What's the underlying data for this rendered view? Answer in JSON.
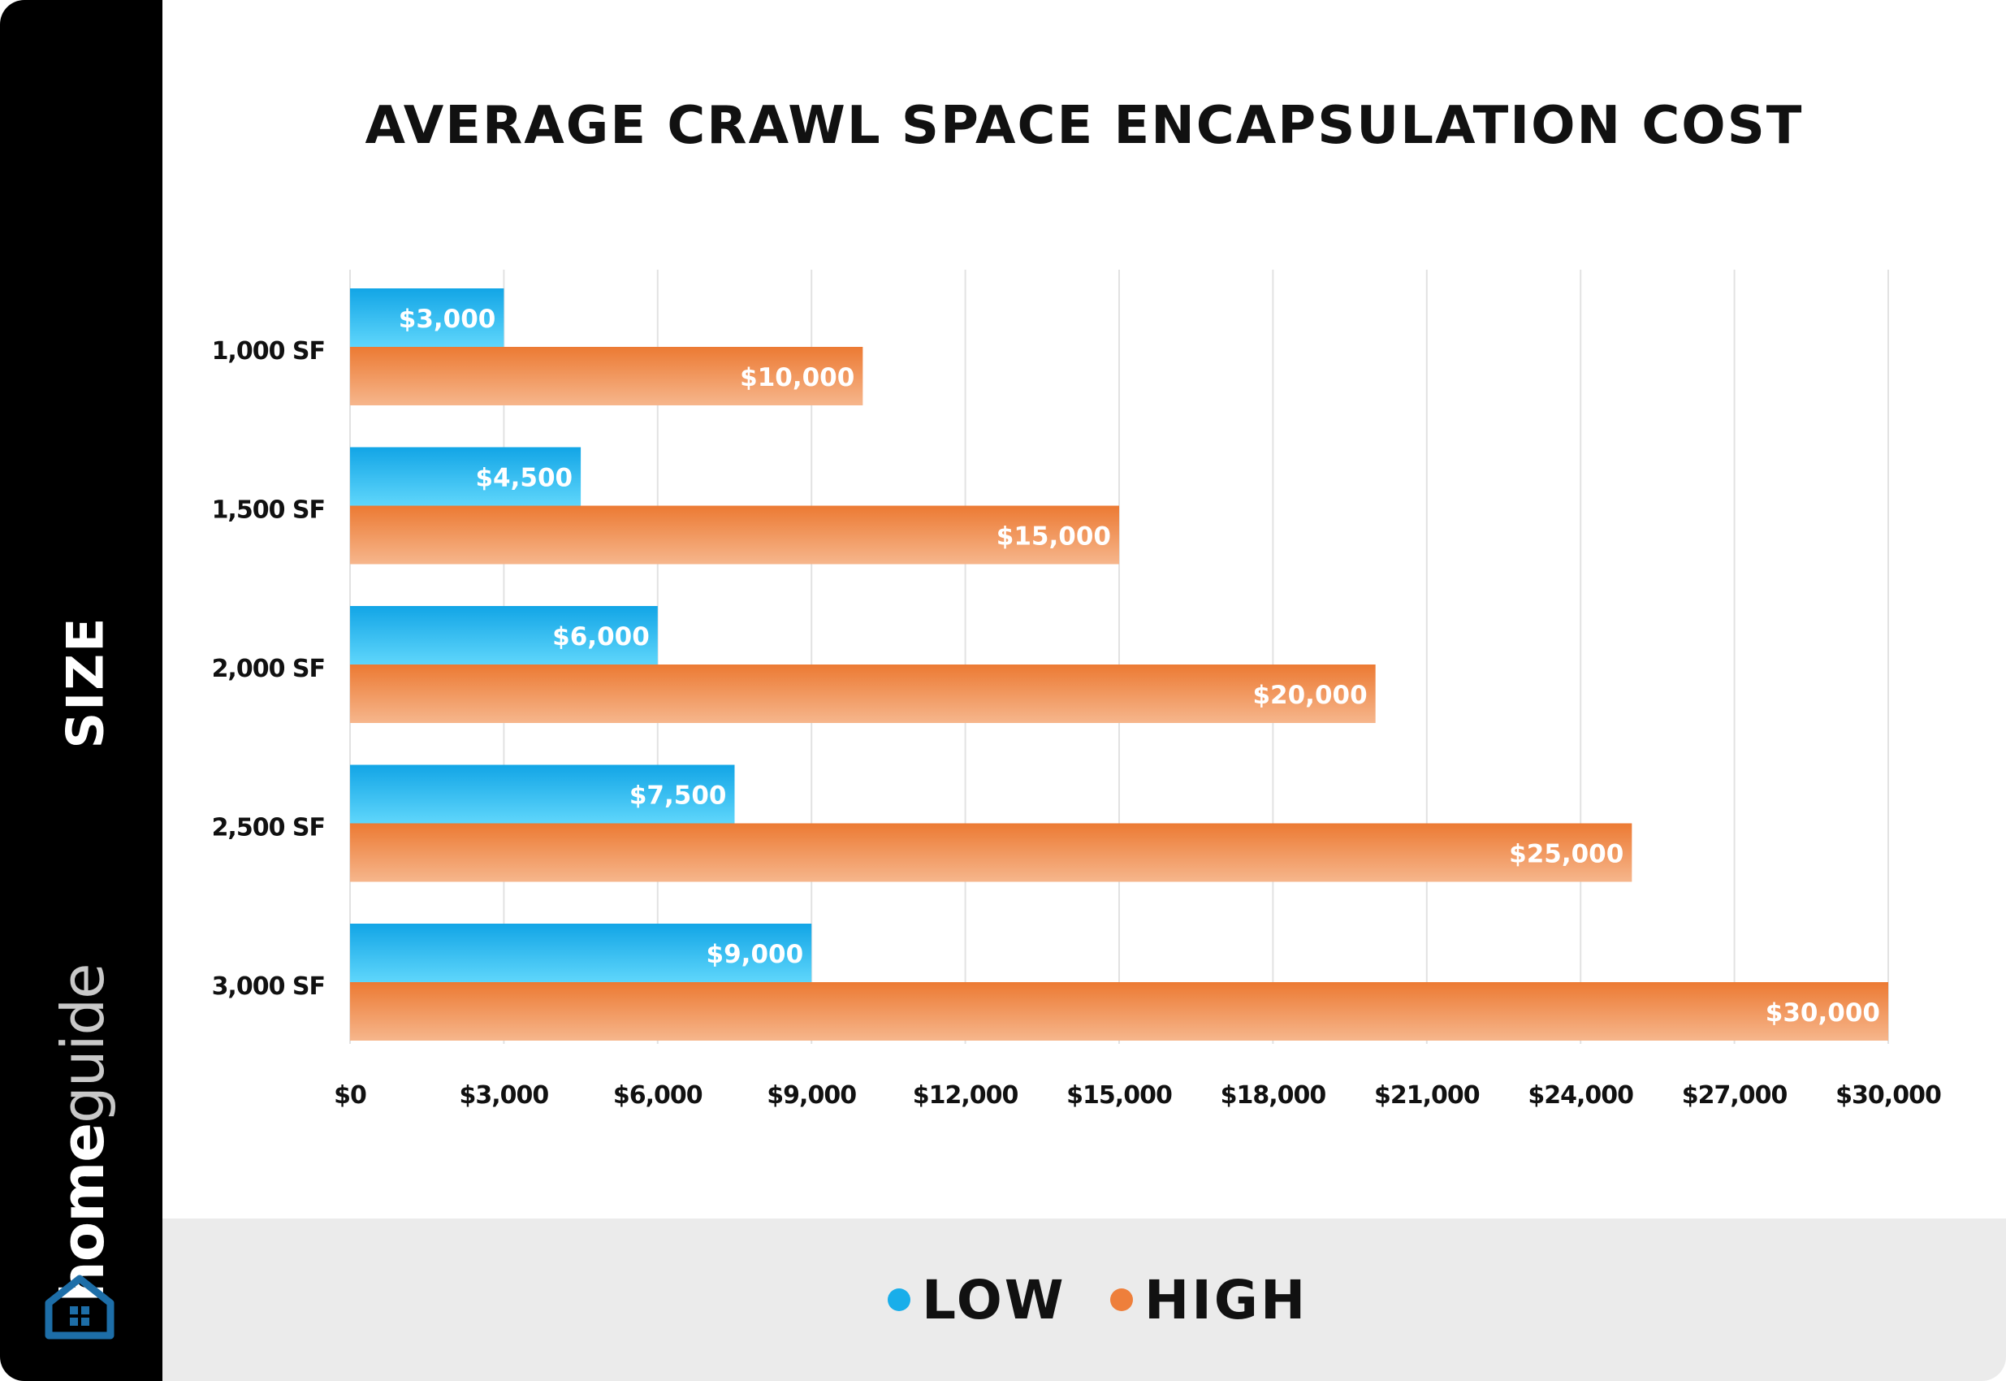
{
  "side_label": "SIZE",
  "brand": {
    "part1": "home",
    "part2": "guide"
  },
  "icons": {
    "logo": "house-icon"
  },
  "colors": {
    "low": "#19aeea",
    "high": "#ee7f3b",
    "sidebar": "#000000",
    "legend_background": "#ebebeb",
    "grid": "#e2e2e2"
  },
  "chart_data": {
    "type": "bar",
    "orientation": "horizontal",
    "title": "AVERAGE CRAWL SPACE ENCAPSULATION COST",
    "ylabel": "SIZE",
    "xlabel": "",
    "categories": [
      "1,000 SF",
      "1,500 SF",
      "2,000 SF",
      "2,500 SF",
      "3,000 SF"
    ],
    "series": [
      {
        "name": "LOW",
        "values": [
          3000,
          4500,
          6000,
          7500,
          9000
        ],
        "labels": [
          "$3,000",
          "$4,500",
          "$6,000",
          "$7,500",
          "$9,000"
        ]
      },
      {
        "name": "HIGH",
        "values": [
          10000,
          15000,
          20000,
          25000,
          30000
        ],
        "labels": [
          "$10,000",
          "$15,000",
          "$20,000",
          "$25,000",
          "$30,000"
        ]
      }
    ],
    "xlim": [
      0,
      30000
    ],
    "xticks": [
      0,
      3000,
      6000,
      9000,
      12000,
      15000,
      18000,
      21000,
      24000,
      27000,
      30000
    ],
    "xtick_labels": [
      "$0",
      "$3,000",
      "$6,000",
      "$9,000",
      "$12,000",
      "$15,000",
      "$18,000",
      "$21,000",
      "$24,000",
      "$27,000",
      "$30,000"
    ],
    "grid": true,
    "legend_position": "bottom"
  }
}
